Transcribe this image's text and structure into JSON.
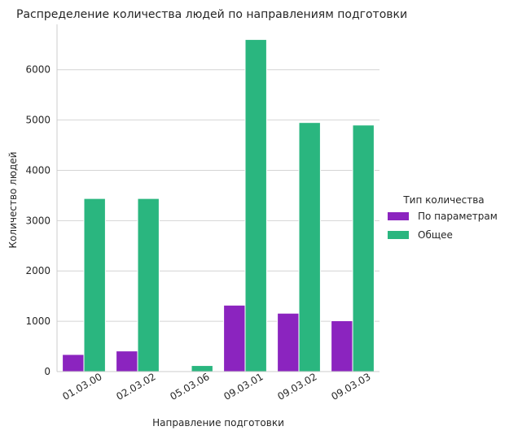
{
  "chart_data": {
    "type": "bar",
    "title": "Распределение количества людей по направлениям подготовки",
    "xlabel": "Направление подготовки",
    "ylabel": "Количество людей",
    "categories": [
      "01.03.00",
      "02.03.02",
      "05.03.06",
      "09.03.01",
      "09.03.02",
      "09.03.03"
    ],
    "series": [
      {
        "name": "По параметрам",
        "color": "#8b24bf",
        "values": [
          340,
          410,
          0,
          1320,
          1160,
          1010
        ]
      },
      {
        "name": "Общее",
        "color": "#2ab67f",
        "values": [
          3440,
          3440,
          120,
          6600,
          4950,
          4900
        ]
      }
    ],
    "ylim": [
      0,
      6900
    ],
    "yticks": [
      0,
      1000,
      2000,
      3000,
      4000,
      5000,
      6000
    ],
    "grid": "horizontal",
    "legend": {
      "title": "Тип количества",
      "placement": "right"
    }
  }
}
